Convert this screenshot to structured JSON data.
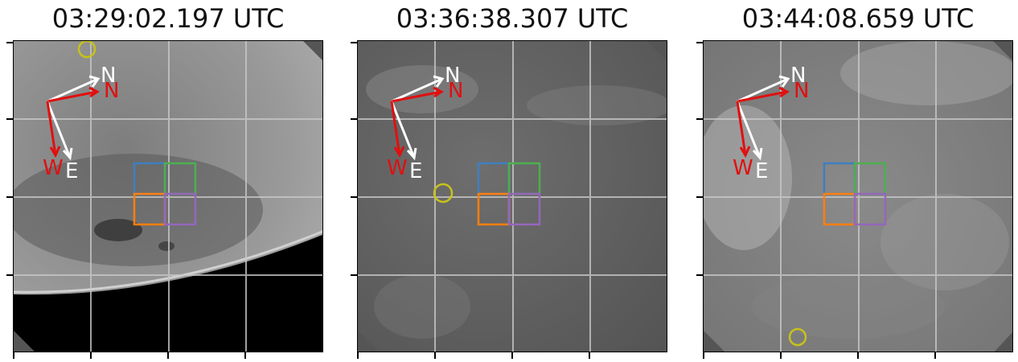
{
  "panels": [
    {
      "timestamp": "03:29:02.197 UTC",
      "north_white": "N",
      "north_red": "N",
      "west_label": "W",
      "east_label": "E"
    },
    {
      "timestamp": "03:36:38.307 UTC",
      "north_white": "N",
      "north_red": "N",
      "west_label": "W",
      "east_label": "E"
    },
    {
      "timestamp": "03:44:08.659 UTC",
      "north_white": "N",
      "north_red": "N",
      "west_label": "W",
      "east_label": "E"
    }
  ],
  "colors": {
    "box_blue": "#3f7fbf",
    "box_green": "#4caf50",
    "box_orange": "#ff7f0e",
    "box_purple": "#9467bd",
    "circle": "#c7c21a",
    "arrow_white": "#ffffff",
    "arrow_red": "#e01010",
    "grid": "#c8c8c8"
  }
}
